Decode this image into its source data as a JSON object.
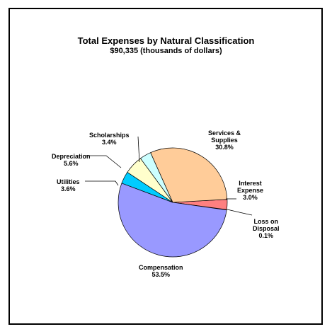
{
  "chart_data": {
    "type": "pie",
    "title": "Total Expenses by Natural Classification",
    "subtitle": "$90,335 (thousands of dollars)",
    "categories": [
      "Loss on\nDisposal",
      "Interest\nExpense",
      "Services &\nSupplies",
      "Scholarships",
      "Depreciation",
      "Utilities",
      "Compensation"
    ],
    "values": [
      0.1,
      3.0,
      30.8,
      3.4,
      5.6,
      3.6,
      53.5
    ],
    "value_labels": [
      "0.1%",
      "3.0%",
      "30.8%",
      "3.4%",
      "5.6%",
      "3.6%",
      "53.5%"
    ],
    "colors": [
      "#993366",
      "#ff8080",
      "#ffcc99",
      "#ccffff",
      "#ffffcc",
      "#00ccff",
      "#9999ff"
    ]
  }
}
